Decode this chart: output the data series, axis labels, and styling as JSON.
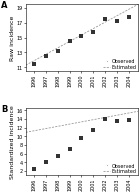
{
  "years": [
    1996,
    1997,
    1998,
    1999,
    2000,
    2001,
    2002,
    2003,
    2004
  ],
  "raw_observed": [
    11.5,
    12.5,
    13.2,
    14.5,
    15.2,
    15.8,
    17.5,
    17.2,
    17.8
  ],
  "raw_ylim": [
    10.5,
    19.5
  ],
  "raw_yticks": [
    11,
    13,
    15,
    17,
    19
  ],
  "std_observed": [
    2.5,
    4.0,
    5.5,
    7.0,
    9.5,
    11.5,
    14.0,
    13.5,
    13.8
  ],
  "std_ylim": [
    1.0,
    16.5
  ],
  "std_yticks": [
    2,
    4,
    6,
    8,
    10,
    12,
    14,
    16
  ],
  "raw_slope": 0.86,
  "raw_intercept": -1704.66,
  "std_slope": 0.512,
  "std_intercept": -1010.68,
  "xlim": [
    1995.3,
    2004.8
  ],
  "xticks": [
    1996,
    1997,
    1998,
    1999,
    2000,
    2001,
    2002,
    2003,
    2004
  ],
  "tick_fontsize": 3.5,
  "legend_fontsize": 3.5,
  "panel_label_fontsize": 6,
  "ylabel_fontsize": 4.5,
  "dot_color": "#333333",
  "line_color": "#999999",
  "dot_size": 5,
  "line_width": 0.6,
  "ylabel_A": "Raw incidence",
  "ylabel_B": "Standardized incidence",
  "label_observed": "Observed",
  "label_estimated": "Estimated"
}
